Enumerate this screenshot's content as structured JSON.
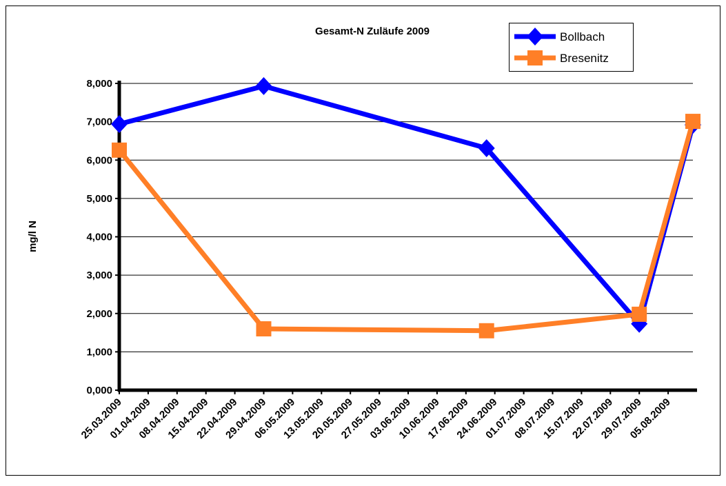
{
  "chart_data": {
    "type": "line",
    "title": "Gesamt-N  Zuläufe 2009",
    "y_label": "mg/l N",
    "x": [
      "25.03.2009",
      "29.04.2009",
      "22.06.2009",
      "29.07.2009",
      "11.08.2009"
    ],
    "xlim": [
      "25.03.2009",
      "11.08.2009"
    ],
    "xticks": [
      "25.03.2009",
      "01.04.2009",
      "08.04.2009",
      "15.04.2009",
      "22.04.2009",
      "29.04.2009",
      "06.05.2009",
      "13.05.2009",
      "20.05.2009",
      "27.05.2009",
      "03.06.2009",
      "10.06.2009",
      "17.06.2009",
      "24.06.2009",
      "01.07.2009",
      "08.07.2009",
      "15.07.2009",
      "22.07.2009",
      "29.07.2009",
      "05.08.2009"
    ],
    "series": [
      {
        "name": "Bollbach",
        "color": "#0000ff",
        "marker": "diamond",
        "values": [
          6.94,
          7.93,
          6.31,
          1.73,
          6.92
        ]
      },
      {
        "name": "Bresenitz",
        "color": "#ff7f27",
        "marker": "square",
        "values": [
          6.26,
          1.6,
          1.55,
          1.98,
          7.01
        ]
      }
    ],
    "ylim": [
      0,
      8
    ],
    "yticks": [
      {
        "value": 0,
        "label": "0,000"
      },
      {
        "value": 1,
        "label": "1,000"
      },
      {
        "value": 2,
        "label": "2,000"
      },
      {
        "value": 3,
        "label": "3,000"
      },
      {
        "value": 4,
        "label": "4,000"
      },
      {
        "value": 5,
        "label": "5,000"
      },
      {
        "value": 6,
        "label": "6,000"
      },
      {
        "value": 7,
        "label": "7,000"
      },
      {
        "value": 8,
        "label": "8,000"
      }
    ],
    "grid": true,
    "legend": "top-right"
  }
}
